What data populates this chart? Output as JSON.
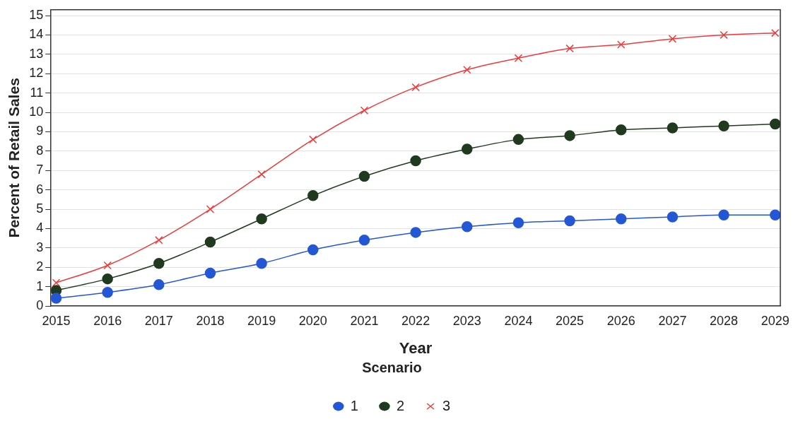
{
  "chart_data": {
    "type": "line",
    "xlabel": "Year",
    "ylabel": "Percent of Retail Sales",
    "legend_title": "Scenario",
    "x": [
      2015,
      2016,
      2017,
      2018,
      2019,
      2020,
      2021,
      2022,
      2023,
      2024,
      2025,
      2026,
      2027,
      2028,
      2029
    ],
    "xlim": [
      2014.9,
      2029.1
    ],
    "xticks": [
      2015,
      2016,
      2017,
      2018,
      2019,
      2020,
      2021,
      2022,
      2023,
      2024,
      2025,
      2026,
      2027,
      2028,
      2029
    ],
    "ylim": [
      0,
      15.3
    ],
    "yticks": [
      0,
      1,
      2,
      3,
      4,
      5,
      6,
      7,
      8,
      9,
      10,
      11,
      12,
      13,
      14,
      15
    ],
    "grid": "y",
    "legend": "bottom",
    "line_style": "solid",
    "series": [
      {
        "name": "1",
        "color": "#2457d6",
        "marker": "circle",
        "values": [
          0.4,
          0.7,
          1.1,
          1.7,
          2.2,
          2.9,
          3.4,
          3.8,
          4.1,
          4.3,
          4.4,
          4.5,
          4.6,
          4.7,
          4.7
        ]
      },
      {
        "name": "2",
        "color": "#1f3a1f",
        "marker": "circle",
        "values": [
          0.8,
          1.4,
          2.2,
          3.3,
          4.5,
          5.7,
          6.7,
          7.5,
          8.1,
          8.6,
          8.8,
          9.1,
          9.2,
          9.3,
          9.4
        ]
      },
      {
        "name": "3",
        "color": "#f03a3a",
        "marker": "cross",
        "values": [
          1.2,
          2.1,
          3.4,
          5.0,
          6.8,
          8.6,
          10.1,
          11.3,
          12.2,
          12.8,
          13.3,
          13.5,
          13.8,
          14.0,
          14.1
        ]
      }
    ]
  }
}
